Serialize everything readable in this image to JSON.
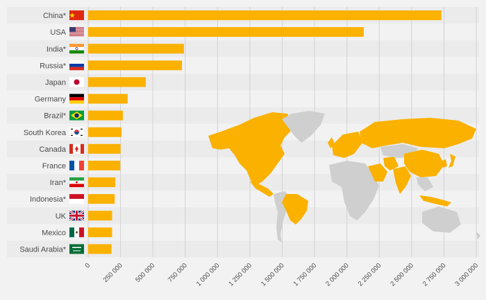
{
  "colors": {
    "bar": "#fbb100",
    "row_band": "#ebebeb",
    "background": "#f2f2f2",
    "grid": "#d2d2d2",
    "label_text": "#4a4a4a",
    "map_highlight": "#fbb100",
    "map_other": "#cfcfcf"
  },
  "chart_data": {
    "type": "bar",
    "orientation": "horizontal",
    "title": "",
    "xlabel": "",
    "ylabel": "",
    "xlim": [
      0,
      3000000
    ],
    "grid": true,
    "legend": "none",
    "categories": [
      "China*",
      "USA",
      "India*",
      "Russia*",
      "Japan",
      "Germany",
      "Brazil*",
      "South Korea",
      "Canada",
      "France",
      "Iran*",
      "Indonesia*",
      "UK",
      "Mexico",
      "Saudi Arabia*"
    ],
    "flags": [
      "china-flag-icon",
      "usa-flag-icon",
      "india-flag-icon",
      "russia-flag-icon",
      "japan-flag-icon",
      "germany-flag-icon",
      "brazil-flag-icon",
      "south-korea-flag-icon",
      "canada-flag-icon",
      "france-flag-icon",
      "iran-flag-icon",
      "indonesia-flag-icon",
      "uk-flag-icon",
      "mexico-flag-icon",
      "saudi-arabia-flag-icon"
    ],
    "values": [
      2730000,
      2130000,
      740000,
      725000,
      445000,
      305000,
      268000,
      258000,
      250000,
      248000,
      210000,
      205000,
      185000,
      185000,
      180000
    ],
    "tick_values": [
      0,
      250000,
      500000,
      750000,
      1000000,
      1250000,
      1500000,
      1750000,
      2000000,
      2250000,
      2500000,
      2750000,
      3000000
    ],
    "tick_labels": [
      "0",
      "250 000",
      "500 000",
      "750 000",
      "1 000 000",
      "1 250 000",
      "1 500 000",
      "1 750 000",
      "2 000 000",
      "2 250 000",
      "2 500 000",
      "2 750 000",
      "3 000 000"
    ]
  }
}
